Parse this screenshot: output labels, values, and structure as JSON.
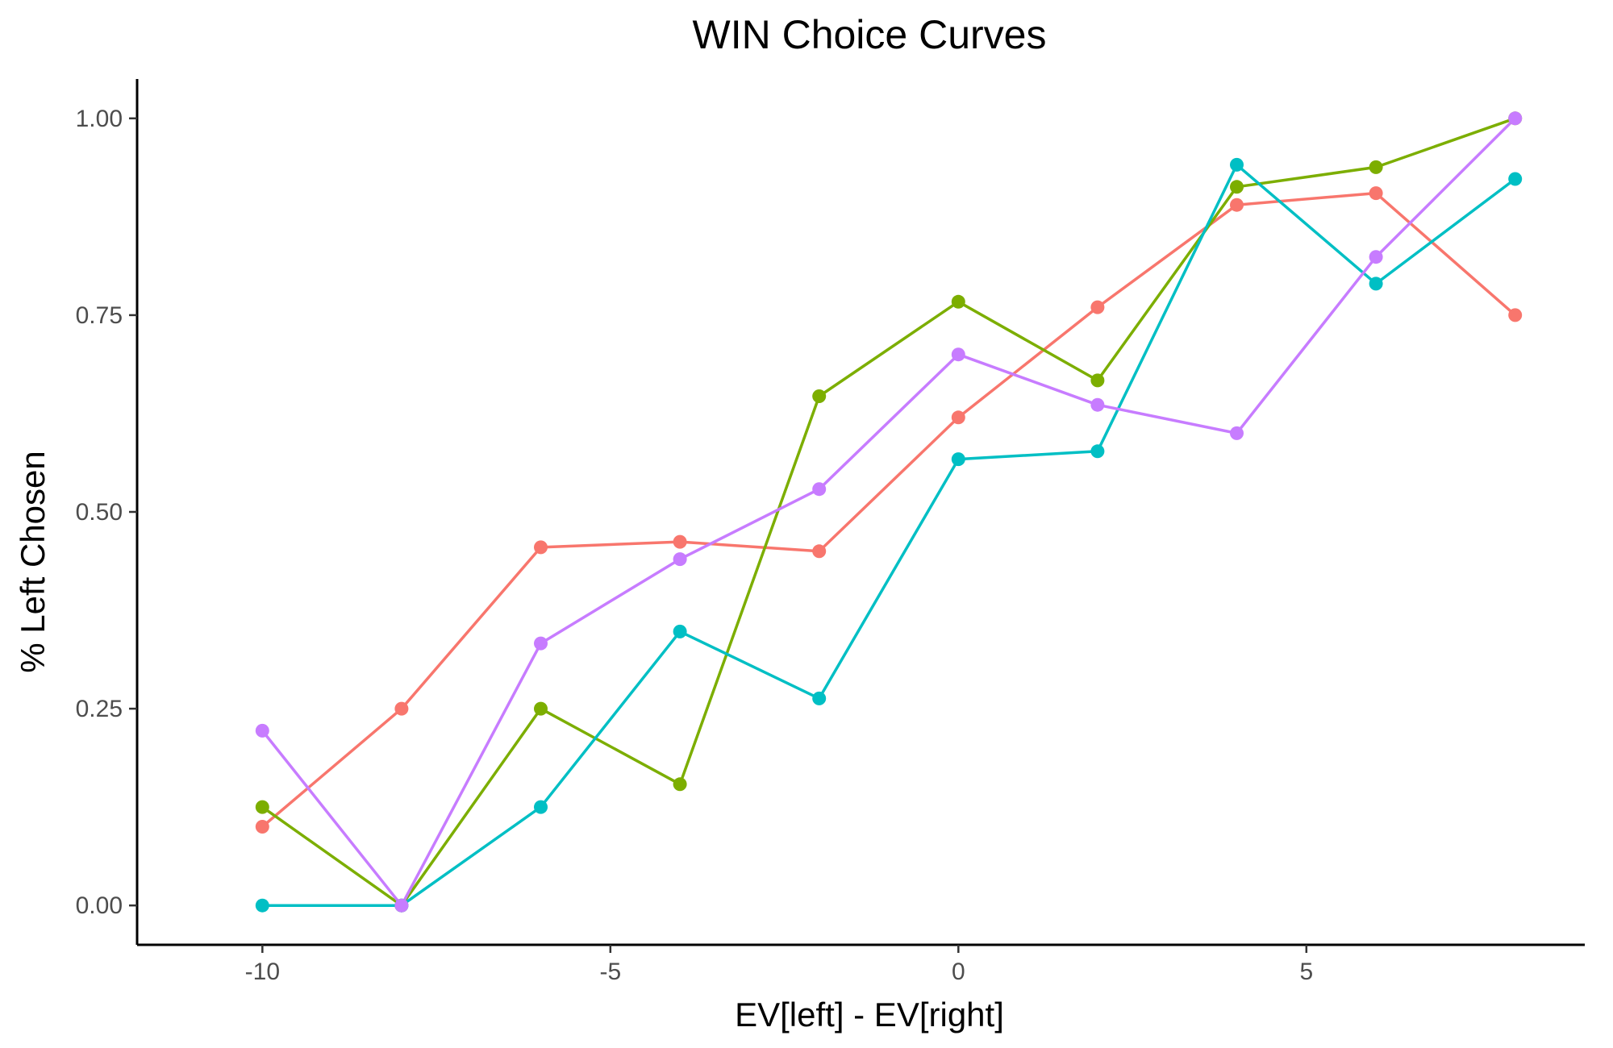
{
  "chart_data": {
    "type": "line",
    "title": "WIN Choice Curves",
    "xlabel": "EV[left] - EV[right]",
    "ylabel": "% Left Chosen",
    "xlim": [
      -11.8,
      9.0
    ],
    "ylim": [
      -0.05,
      1.05
    ],
    "x_ticks": [
      -10,
      -5,
      0,
      5
    ],
    "x_tick_labels": [
      "-10",
      "-5",
      "0",
      "5"
    ],
    "y_ticks": [
      0,
      0.25,
      0.5,
      0.75,
      1.0
    ],
    "y_tick_labels": [
      "0.00",
      "0.25",
      "0.50",
      "0.75",
      "1.00"
    ],
    "grid": false,
    "legend": "none",
    "x": [
      -10,
      -8,
      -6,
      -4,
      -2,
      0,
      2,
      4,
      6,
      8
    ],
    "series": [
      {
        "color": "#F8766D",
        "values": [
          0.1,
          0.25,
          0.455,
          0.462,
          0.45,
          0.62,
          0.76,
          0.89,
          0.905,
          0.75
        ]
      },
      {
        "color": "#7CAE00",
        "values": [
          0.125,
          0.0,
          0.25,
          0.154,
          0.647,
          0.767,
          0.667,
          0.913,
          0.938,
          1.0
        ]
      },
      {
        "color": "#00BFC4",
        "values": [
          0.0,
          0.0,
          0.125,
          0.348,
          0.263,
          0.567,
          0.577,
          0.941,
          0.79,
          0.923
        ]
      },
      {
        "color": "#C77CFF",
        "values": [
          0.222,
          0.0,
          0.333,
          0.44,
          0.529,
          0.7,
          0.636,
          0.6,
          0.824,
          1.0
        ]
      }
    ]
  }
}
